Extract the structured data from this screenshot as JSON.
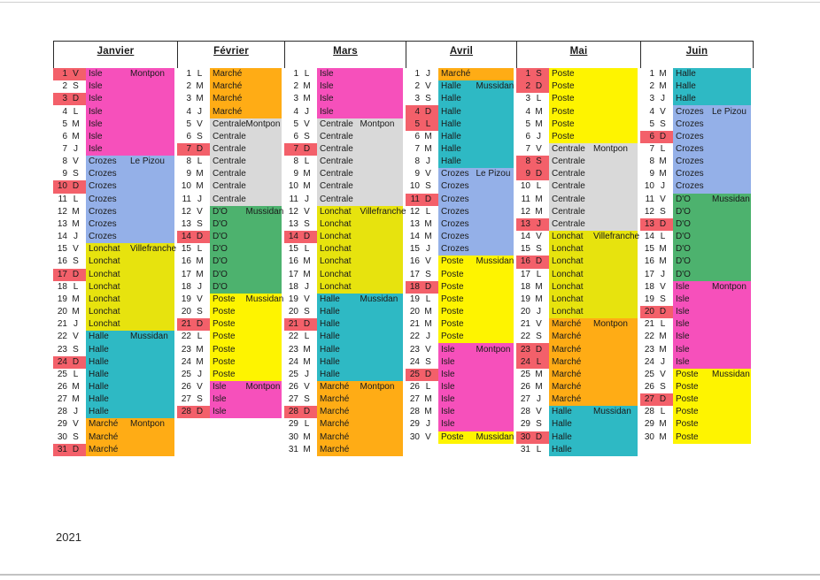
{
  "year": "2021",
  "colors": {
    "holiday": "#F3606A",
    "pharmacies": {
      "Isle": "#F650BB",
      "Crozes": "#94B0E8",
      "Lonchat": "#E7E30E",
      "Halle": "#2EB9C4",
      "Marché": "#FFAC15",
      "Centrale": "#D9D9D9",
      "D'O": "#4DB26E",
      "Poste": "#FEF400"
    }
  },
  "months": [
    {
      "name": "Janvier",
      "days": [
        {
          "n": 1,
          "d": "V",
          "ph": "Isle",
          "town": "Montpon",
          "hol": true
        },
        {
          "n": 2,
          "d": "S",
          "ph": "Isle"
        },
        {
          "n": 3,
          "d": "D",
          "ph": "Isle",
          "hol": true
        },
        {
          "n": 4,
          "d": "L",
          "ph": "Isle"
        },
        {
          "n": 5,
          "d": "M",
          "ph": "Isle"
        },
        {
          "n": 6,
          "d": "M",
          "ph": "Isle"
        },
        {
          "n": 7,
          "d": "J",
          "ph": "Isle"
        },
        {
          "n": 8,
          "d": "V",
          "ph": "Crozes",
          "town": "Le Pizou"
        },
        {
          "n": 9,
          "d": "S",
          "ph": "Crozes"
        },
        {
          "n": 10,
          "d": "D",
          "ph": "Crozes",
          "hol": true
        },
        {
          "n": 11,
          "d": "L",
          "ph": "Crozes"
        },
        {
          "n": 12,
          "d": "M",
          "ph": "Crozes"
        },
        {
          "n": 13,
          "d": "M",
          "ph": "Crozes"
        },
        {
          "n": 14,
          "d": "J",
          "ph": "Crozes"
        },
        {
          "n": 15,
          "d": "V",
          "ph": "Lonchat",
          "town": "Villefranche"
        },
        {
          "n": 16,
          "d": "S",
          "ph": "Lonchat"
        },
        {
          "n": 17,
          "d": "D",
          "ph": "Lonchat",
          "hol": true
        },
        {
          "n": 18,
          "d": "L",
          "ph": "Lonchat"
        },
        {
          "n": 19,
          "d": "M",
          "ph": "Lonchat"
        },
        {
          "n": 20,
          "d": "M",
          "ph": "Lonchat"
        },
        {
          "n": 21,
          "d": "J",
          "ph": "Lonchat"
        },
        {
          "n": 22,
          "d": "V",
          "ph": "Halle",
          "town": "Mussidan"
        },
        {
          "n": 23,
          "d": "S",
          "ph": "Halle"
        },
        {
          "n": 24,
          "d": "D",
          "ph": "Halle",
          "hol": true
        },
        {
          "n": 25,
          "d": "L",
          "ph": "Halle"
        },
        {
          "n": 26,
          "d": "M",
          "ph": "Halle"
        },
        {
          "n": 27,
          "d": "M",
          "ph": "Halle"
        },
        {
          "n": 28,
          "d": "J",
          "ph": "Halle"
        },
        {
          "n": 29,
          "d": "V",
          "ph": "Marché",
          "town": "Montpon"
        },
        {
          "n": 30,
          "d": "S",
          "ph": "Marché"
        },
        {
          "n": 31,
          "d": "D",
          "ph": "Marché",
          "hol": true
        }
      ]
    },
    {
      "name": "Février",
      "days": [
        {
          "n": 1,
          "d": "L",
          "ph": "Marché"
        },
        {
          "n": 2,
          "d": "M",
          "ph": "Marché"
        },
        {
          "n": 3,
          "d": "M",
          "ph": "Marché"
        },
        {
          "n": 4,
          "d": "J",
          "ph": "Marché"
        },
        {
          "n": 5,
          "d": "V",
          "ph": "Centrale",
          "town": "Montpon"
        },
        {
          "n": 6,
          "d": "S",
          "ph": "Centrale"
        },
        {
          "n": 7,
          "d": "D",
          "ph": "Centrale",
          "hol": true
        },
        {
          "n": 8,
          "d": "L",
          "ph": "Centrale"
        },
        {
          "n": 9,
          "d": "M",
          "ph": "Centrale"
        },
        {
          "n": 10,
          "d": "M",
          "ph": "Centrale"
        },
        {
          "n": 11,
          "d": "J",
          "ph": "Centrale"
        },
        {
          "n": 12,
          "d": "V",
          "ph": "D'O",
          "town": "Mussidan"
        },
        {
          "n": 13,
          "d": "S",
          "ph": "D'O"
        },
        {
          "n": 14,
          "d": "D",
          "ph": "D'O",
          "hol": true
        },
        {
          "n": 15,
          "d": "L",
          "ph": "D'O"
        },
        {
          "n": 16,
          "d": "M",
          "ph": "D'O"
        },
        {
          "n": 17,
          "d": "M",
          "ph": "D'O"
        },
        {
          "n": 18,
          "d": "J",
          "ph": "D'O"
        },
        {
          "n": 19,
          "d": "V",
          "ph": "Poste",
          "town": "Mussidan"
        },
        {
          "n": 20,
          "d": "S",
          "ph": "Poste"
        },
        {
          "n": 21,
          "d": "D",
          "ph": "Poste",
          "hol": true
        },
        {
          "n": 22,
          "d": "L",
          "ph": "Poste"
        },
        {
          "n": 23,
          "d": "M",
          "ph": "Poste"
        },
        {
          "n": 24,
          "d": "M",
          "ph": "Poste"
        },
        {
          "n": 25,
          "d": "J",
          "ph": "Poste"
        },
        {
          "n": 26,
          "d": "V",
          "ph": "Isle",
          "town": "Montpon"
        },
        {
          "n": 27,
          "d": "S",
          "ph": "Isle"
        },
        {
          "n": 28,
          "d": "D",
          "ph": "Isle",
          "hol": true
        }
      ]
    },
    {
      "name": "Mars",
      "days": [
        {
          "n": 1,
          "d": "L",
          "ph": "Isle"
        },
        {
          "n": 2,
          "d": "M",
          "ph": "Isle"
        },
        {
          "n": 3,
          "d": "M",
          "ph": "Isle"
        },
        {
          "n": 4,
          "d": "J",
          "ph": "Isle"
        },
        {
          "n": 5,
          "d": "V",
          "ph": "Centrale",
          "town": "Montpon"
        },
        {
          "n": 6,
          "d": "S",
          "ph": "Centrale"
        },
        {
          "n": 7,
          "d": "D",
          "ph": "Centrale",
          "hol": true
        },
        {
          "n": 8,
          "d": "L",
          "ph": "Centrale"
        },
        {
          "n": 9,
          "d": "M",
          "ph": "Centrale"
        },
        {
          "n": 10,
          "d": "M",
          "ph": "Centrale"
        },
        {
          "n": 11,
          "d": "J",
          "ph": "Centrale"
        },
        {
          "n": 12,
          "d": "V",
          "ph": "Lonchat",
          "town": "Villefranche"
        },
        {
          "n": 13,
          "d": "S",
          "ph": "Lonchat"
        },
        {
          "n": 14,
          "d": "D",
          "ph": "Lonchat",
          "hol": true
        },
        {
          "n": 15,
          "d": "L",
          "ph": "Lonchat"
        },
        {
          "n": 16,
          "d": "M",
          "ph": "Lonchat"
        },
        {
          "n": 17,
          "d": "M",
          "ph": "Lonchat"
        },
        {
          "n": 18,
          "d": "J",
          "ph": "Lonchat"
        },
        {
          "n": 19,
          "d": "V",
          "ph": "Halle",
          "town": "Mussidan"
        },
        {
          "n": 20,
          "d": "S",
          "ph": "Halle"
        },
        {
          "n": 21,
          "d": "D",
          "ph": "Halle",
          "hol": true
        },
        {
          "n": 22,
          "d": "L",
          "ph": "Halle"
        },
        {
          "n": 23,
          "d": "M",
          "ph": "Halle"
        },
        {
          "n": 24,
          "d": "M",
          "ph": "Halle"
        },
        {
          "n": 25,
          "d": "J",
          "ph": "Halle"
        },
        {
          "n": 26,
          "d": "V",
          "ph": "Marché",
          "town": "Montpon"
        },
        {
          "n": 27,
          "d": "S",
          "ph": "Marché"
        },
        {
          "n": 28,
          "d": "D",
          "ph": "Marché",
          "hol": true
        },
        {
          "n": 29,
          "d": "L",
          "ph": "Marché"
        },
        {
          "n": 30,
          "d": "M",
          "ph": "Marché"
        },
        {
          "n": 31,
          "d": "M",
          "ph": "Marché"
        }
      ]
    },
    {
      "name": "Avril",
      "days": [
        {
          "n": 1,
          "d": "J",
          "ph": "Marché"
        },
        {
          "n": 2,
          "d": "V",
          "ph": "Halle",
          "town": "Mussidan"
        },
        {
          "n": 3,
          "d": "S",
          "ph": "Halle"
        },
        {
          "n": 4,
          "d": "D",
          "ph": "Halle",
          "hol": true
        },
        {
          "n": 5,
          "d": "L",
          "ph": "Halle",
          "hol": true
        },
        {
          "n": 6,
          "d": "M",
          "ph": "Halle"
        },
        {
          "n": 7,
          "d": "M",
          "ph": "Halle"
        },
        {
          "n": 8,
          "d": "J",
          "ph": "Halle"
        },
        {
          "n": 9,
          "d": "V",
          "ph": "Crozes",
          "town": "Le Pizou"
        },
        {
          "n": 10,
          "d": "S",
          "ph": "Crozes"
        },
        {
          "n": 11,
          "d": "D",
          "ph": "Crozes",
          "hol": true
        },
        {
          "n": 12,
          "d": "L",
          "ph": "Crozes"
        },
        {
          "n": 13,
          "d": "M",
          "ph": "Crozes"
        },
        {
          "n": 14,
          "d": "M",
          "ph": "Crozes"
        },
        {
          "n": 15,
          "d": "J",
          "ph": "Crozes"
        },
        {
          "n": 16,
          "d": "V",
          "ph": "Poste",
          "town": "Mussidan"
        },
        {
          "n": 17,
          "d": "S",
          "ph": "Poste"
        },
        {
          "n": 18,
          "d": "D",
          "ph": "Poste",
          "hol": true
        },
        {
          "n": 19,
          "d": "L",
          "ph": "Poste"
        },
        {
          "n": 20,
          "d": "M",
          "ph": "Poste"
        },
        {
          "n": 21,
          "d": "M",
          "ph": "Poste"
        },
        {
          "n": 22,
          "d": "J",
          "ph": "Poste"
        },
        {
          "n": 23,
          "d": "V",
          "ph": "Isle",
          "town": "Montpon"
        },
        {
          "n": 24,
          "d": "S",
          "ph": "Isle"
        },
        {
          "n": 25,
          "d": "D",
          "ph": "Isle",
          "hol": true
        },
        {
          "n": 26,
          "d": "L",
          "ph": "Isle"
        },
        {
          "n": 27,
          "d": "M",
          "ph": "Isle"
        },
        {
          "n": 28,
          "d": "M",
          "ph": "Isle"
        },
        {
          "n": 29,
          "d": "J",
          "ph": "Isle"
        },
        {
          "n": 30,
          "d": "V",
          "ph": "Poste",
          "town": "Mussidan"
        }
      ]
    },
    {
      "name": "Mai",
      "days": [
        {
          "n": 1,
          "d": "S",
          "ph": "Poste",
          "hol": true
        },
        {
          "n": 2,
          "d": "D",
          "ph": "Poste",
          "hol": true
        },
        {
          "n": 3,
          "d": "L",
          "ph": "Poste"
        },
        {
          "n": 4,
          "d": "M",
          "ph": "Poste"
        },
        {
          "n": 5,
          "d": "M",
          "ph": "Poste"
        },
        {
          "n": 6,
          "d": "J",
          "ph": "Poste"
        },
        {
          "n": 7,
          "d": "V",
          "ph": "Centrale",
          "town": "Montpon"
        },
        {
          "n": 8,
          "d": "S",
          "ph": "Centrale",
          "hol": true
        },
        {
          "n": 9,
          "d": "D",
          "ph": "Centrale",
          "hol": true
        },
        {
          "n": 10,
          "d": "L",
          "ph": "Centrale"
        },
        {
          "n": 11,
          "d": "M",
          "ph": "Centrale"
        },
        {
          "n": 12,
          "d": "M",
          "ph": "Centrale"
        },
        {
          "n": 13,
          "d": "J",
          "ph": "Centrale",
          "hol": true
        },
        {
          "n": 14,
          "d": "V",
          "ph": "Lonchat",
          "town": "Villefranche"
        },
        {
          "n": 15,
          "d": "S",
          "ph": "Lonchat"
        },
        {
          "n": 16,
          "d": "D",
          "ph": "Lonchat",
          "hol": true
        },
        {
          "n": 17,
          "d": "L",
          "ph": "Lonchat"
        },
        {
          "n": 18,
          "d": "M",
          "ph": "Lonchat"
        },
        {
          "n": 19,
          "d": "M",
          "ph": "Lonchat"
        },
        {
          "n": 20,
          "d": "J",
          "ph": "Lonchat"
        },
        {
          "n": 21,
          "d": "V",
          "ph": "Marché",
          "town": "Montpon"
        },
        {
          "n": 22,
          "d": "S",
          "ph": "Marché"
        },
        {
          "n": 23,
          "d": "D",
          "ph": "Marché",
          "hol": true
        },
        {
          "n": 24,
          "d": "L",
          "ph": "Marché",
          "hol": true
        },
        {
          "n": 25,
          "d": "M",
          "ph": "Marché"
        },
        {
          "n": 26,
          "d": "M",
          "ph": "Marché"
        },
        {
          "n": 27,
          "d": "J",
          "ph": "Marché"
        },
        {
          "n": 28,
          "d": "V",
          "ph": "Halle",
          "town": "Mussidan"
        },
        {
          "n": 29,
          "d": "S",
          "ph": "Halle"
        },
        {
          "n": 30,
          "d": "D",
          "ph": "Halle",
          "hol": true
        },
        {
          "n": 31,
          "d": "L",
          "ph": "Halle"
        }
      ]
    },
    {
      "name": "Juin",
      "days": [
        {
          "n": 1,
          "d": "M",
          "ph": "Halle"
        },
        {
          "n": 2,
          "d": "M",
          "ph": "Halle"
        },
        {
          "n": 3,
          "d": "J",
          "ph": "Halle"
        },
        {
          "n": 4,
          "d": "V",
          "ph": "Crozes",
          "town": "Le Pizou"
        },
        {
          "n": 5,
          "d": "S",
          "ph": "Crozes"
        },
        {
          "n": 6,
          "d": "D",
          "ph": "Crozes",
          "hol": true
        },
        {
          "n": 7,
          "d": "L",
          "ph": "Crozes"
        },
        {
          "n": 8,
          "d": "M",
          "ph": "Crozes"
        },
        {
          "n": 9,
          "d": "M",
          "ph": "Crozes"
        },
        {
          "n": 10,
          "d": "J",
          "ph": "Crozes"
        },
        {
          "n": 11,
          "d": "V",
          "ph": "D'O",
          "town": "Mussidan"
        },
        {
          "n": 12,
          "d": "S",
          "ph": "D'O"
        },
        {
          "n": 13,
          "d": "D",
          "ph": "D'O",
          "hol": true
        },
        {
          "n": 14,
          "d": "L",
          "ph": "D'O"
        },
        {
          "n": 15,
          "d": "M",
          "ph": "D'O"
        },
        {
          "n": 16,
          "d": "M",
          "ph": "D'O"
        },
        {
          "n": 17,
          "d": "J",
          "ph": "D'O"
        },
        {
          "n": 18,
          "d": "V",
          "ph": "Isle",
          "town": "Montpon"
        },
        {
          "n": 19,
          "d": "S",
          "ph": "Isle"
        },
        {
          "n": 20,
          "d": "D",
          "ph": "Isle",
          "hol": true
        },
        {
          "n": 21,
          "d": "L",
          "ph": "Isle"
        },
        {
          "n": 22,
          "d": "M",
          "ph": "Isle"
        },
        {
          "n": 23,
          "d": "M",
          "ph": "Isle"
        },
        {
          "n": 24,
          "d": "J",
          "ph": "Isle"
        },
        {
          "n": 25,
          "d": "V",
          "ph": "Poste",
          "town": "Mussidan"
        },
        {
          "n": 26,
          "d": "S",
          "ph": "Poste"
        },
        {
          "n": 27,
          "d": "D",
          "ph": "Poste",
          "hol": true
        },
        {
          "n": 28,
          "d": "L",
          "ph": "Poste"
        },
        {
          "n": 29,
          "d": "M",
          "ph": "Poste"
        },
        {
          "n": 30,
          "d": "M",
          "ph": "Poste"
        }
      ]
    }
  ]
}
